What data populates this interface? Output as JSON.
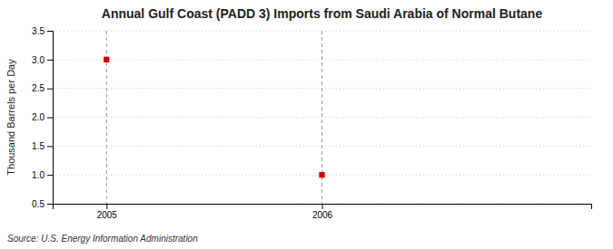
{
  "chart_data": {
    "type": "scatter",
    "title": "Annual Gulf Coast (PADD 3) Imports from Saudi Arabia of Normal Butane",
    "ylabel": "Thousand Barrels per Day",
    "source": "Source: U.S. Energy Information Administration",
    "x": [
      2005,
      2006
    ],
    "values": [
      3.0,
      1.0
    ],
    "xlim": [
      2004.75,
      2007.25
    ],
    "ylim": [
      0.5,
      3.5
    ],
    "xticks": [
      2005,
      2006
    ],
    "yticks": [
      0.5,
      {
        "value": 1.0,
        "label": "1.0"
      },
      1.5,
      {
        "value": 2.0,
        "label": "2.0"
      },
      2.5,
      {
        "value": 3.0,
        "label": "3.0"
      },
      3.5
    ],
    "color": "#cc0000",
    "marker": "square",
    "grid": true
  }
}
